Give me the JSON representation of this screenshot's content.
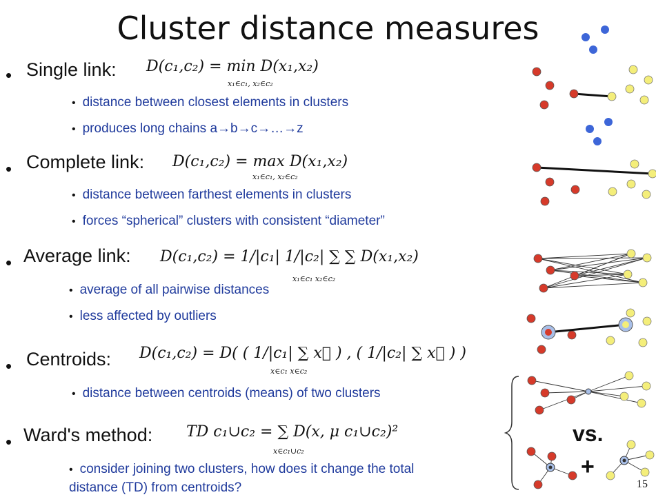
{
  "title": "Cluster distance measures",
  "page_number": "15",
  "sections": [
    {
      "heading": "Single link:",
      "formula": "D(c₁,c₂) = min D(x₁,x₂)",
      "formula_sub": "x₁∈c₁, x₂∈c₂",
      "bullets": [
        "distance between closest elements in clusters",
        "produces long chains a→b→c→…→z"
      ]
    },
    {
      "heading": "Complete link:",
      "formula": "D(c₁,c₂) = max D(x₁,x₂)",
      "formula_sub": "x₁∈c₁, x₂∈c₂",
      "bullets": [
        "distance between farthest elements in clusters",
        "forces “spherical” clusters with consistent “diameter”"
      ]
    },
    {
      "heading": "Average link:",
      "formula": "D(c₁,c₂) = 1/|c₁| 1/|c₂| ∑ ∑ D(x₁,x₂)",
      "formula_sub": "x₁∈c₁  x₂∈c₂",
      "bullets": [
        "average of all pairwise distances",
        "less affected by outliers"
      ]
    },
    {
      "heading": "Centroids:",
      "formula": "D(c₁,c₂) = D( ( 1/|c₁| ∑ x⃗ ) , ( 1/|c₂| ∑ x⃗ ) )",
      "formula_sub": "x∈c₁   x∈c₂",
      "bullets": [
        "distance between centroids (means) of two clusters"
      ]
    },
    {
      "heading": "Ward's method:",
      "formula": "TD c₁∪c₂ = ∑ D(x, μ c₁∪c₂)²",
      "formula_sub": "x∈c₁∪c₂",
      "bullets": [
        "consider joining two clusters, how does it change the total distance (TD) from centroids?"
      ]
    }
  ],
  "illustration": {
    "vs_label": "vs.",
    "plus_label": "+",
    "colors": {
      "red": "#d63a2a",
      "yellow": "#f4ee7a",
      "blue": "#3d66d8",
      "centroid": "#a8bfe8"
    }
  }
}
